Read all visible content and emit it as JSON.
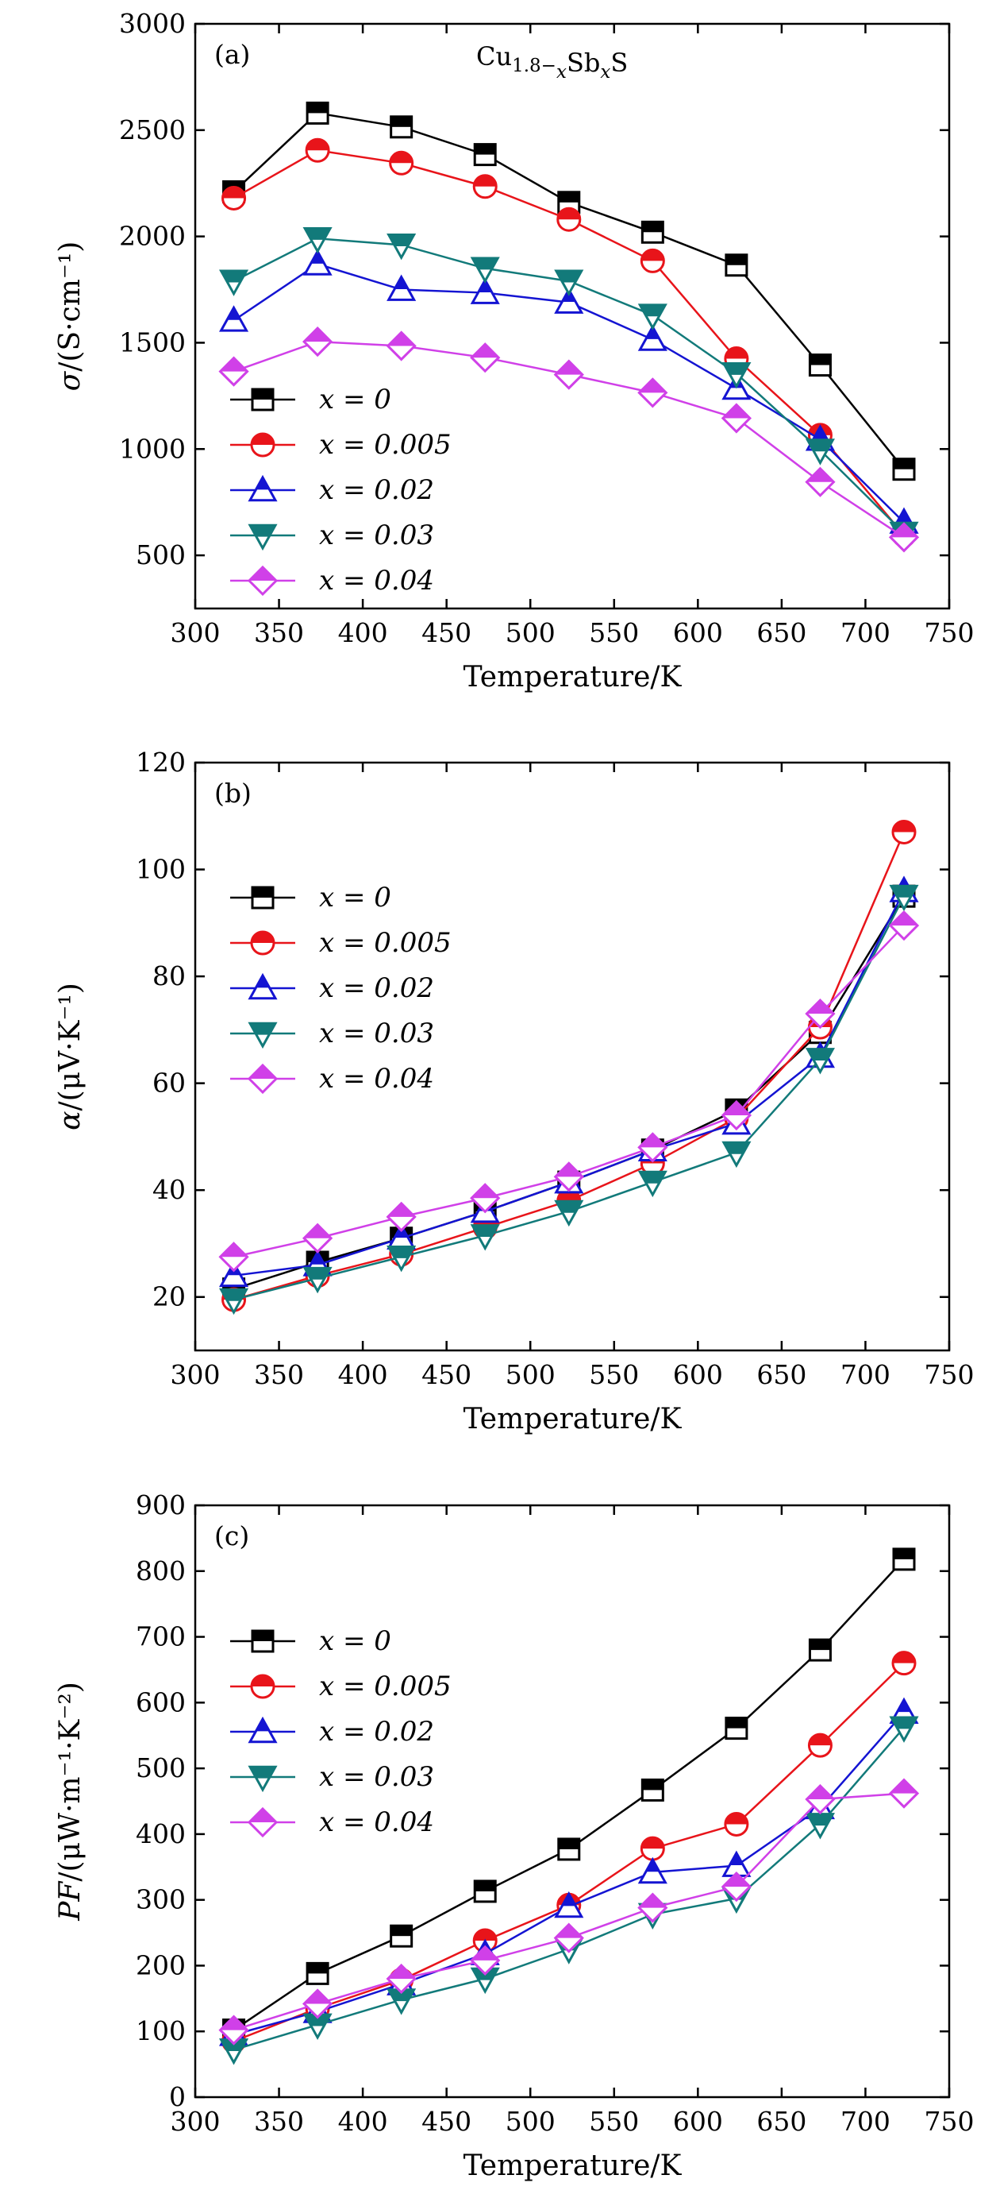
{
  "chart_data": [
    {
      "type": "line",
      "panel_label": "(a)",
      "annotation": "Cu1.8−xSbxS",
      "xlabel": "Temperature/K",
      "ylabel": "σ/(S·cm⁻¹)",
      "xlim": [
        300,
        750
      ],
      "ylim": [
        250,
        3000
      ],
      "xticks": [
        300,
        350,
        400,
        450,
        500,
        550,
        600,
        650,
        700,
        750
      ],
      "yticks": [
        500,
        1000,
        1500,
        2000,
        2500,
        3000
      ],
      "x": [
        323,
        373,
        423,
        473,
        523,
        573,
        623,
        673,
        723
      ],
      "legend_position": "lower-left",
      "series": [
        {
          "name": "x = 0",
          "marker": "square",
          "color": "#000000",
          "values": [
            2210,
            2580,
            2515,
            2385,
            2160,
            2020,
            1865,
            1395,
            905
          ]
        },
        {
          "name": "x = 0.005",
          "marker": "circle",
          "color": "#e8141a",
          "values": [
            2180,
            2405,
            2345,
            2235,
            2080,
            1885,
            1425,
            1065,
            595
          ]
        },
        {
          "name": "x = 0.02",
          "marker": "triangle-up",
          "color": "#1414d2",
          "values": [
            1605,
            1870,
            1750,
            1735,
            1690,
            1515,
            1285,
            1045,
            655
          ]
        },
        {
          "name": "x = 0.03",
          "marker": "triangle-down",
          "color": "#127a7a",
          "values": [
            1790,
            1990,
            1960,
            1850,
            1790,
            1630,
            1355,
            995,
            605
          ]
        },
        {
          "name": "x = 0.04",
          "marker": "diamond",
          "color": "#d040e8",
          "values": [
            1365,
            1505,
            1485,
            1430,
            1350,
            1265,
            1145,
            845,
            585
          ]
        }
      ]
    },
    {
      "type": "line",
      "panel_label": "(b)",
      "xlabel": "Temperature/K",
      "ylabel": "α/(μV·K⁻¹)",
      "xlim": [
        300,
        750
      ],
      "ylim": [
        10,
        120
      ],
      "xticks": [
        300,
        350,
        400,
        450,
        500,
        550,
        600,
        650,
        700,
        750
      ],
      "yticks": [
        20,
        40,
        60,
        80,
        100,
        120
      ],
      "x": [
        323,
        373,
        423,
        473,
        523,
        573,
        623,
        673,
        723
      ],
      "legend_position": "upper-left",
      "series": [
        {
          "name": "x = 0",
          "marker": "square",
          "color": "#000000",
          "values": [
            21.5,
            26.5,
            31,
            36,
            41.5,
            47.5,
            55,
            69.5,
            95
          ]
        },
        {
          "name": "x = 0.005",
          "marker": "circle",
          "color": "#e8141a",
          "values": [
            19.5,
            24,
            28,
            33,
            38,
            45,
            53.5,
            70.5,
            107
          ]
        },
        {
          "name": "x = 0.02",
          "marker": "triangle-up",
          "color": "#1414d2",
          "values": [
            24,
            26,
            31,
            36,
            41.5,
            47.5,
            52.5,
            65,
            96
          ]
        },
        {
          "name": "x = 0.03",
          "marker": "triangle-down",
          "color": "#127a7a",
          "values": [
            19.5,
            23.5,
            27.5,
            31.5,
            36,
            41.5,
            47,
            64.5,
            95
          ]
        },
        {
          "name": "x = 0.04",
          "marker": "diamond",
          "color": "#d040e8",
          "values": [
            27.5,
            31,
            35,
            38.5,
            42.5,
            48,
            54,
            73,
            89.5
          ]
        }
      ]
    },
    {
      "type": "line",
      "panel_label": "(c)",
      "xlabel": "Temperature/K",
      "ylabel": "PF/(μW·m⁻¹·K⁻²)",
      "xlim": [
        300,
        750
      ],
      "ylim": [
        0,
        900
      ],
      "xticks": [
        300,
        350,
        400,
        450,
        500,
        550,
        600,
        650,
        700,
        750
      ],
      "yticks": [
        0,
        100,
        200,
        300,
        400,
        500,
        600,
        700,
        800,
        900
      ],
      "x": [
        323,
        373,
        423,
        473,
        523,
        573,
        623,
        673,
        723
      ],
      "legend_position": "upper-left",
      "series": [
        {
          "name": "x = 0",
          "marker": "square",
          "color": "#000000",
          "values": [
            102,
            188,
            245,
            313,
            377,
            467,
            561,
            680,
            818
          ]
        },
        {
          "name": "x = 0.005",
          "marker": "circle",
          "color": "#e8141a",
          "values": [
            85,
            135,
            178,
            238,
            292,
            378,
            415,
            535,
            660
          ]
        },
        {
          "name": "x = 0.02",
          "marker": "triangle-up",
          "color": "#1414d2",
          "values": [
            95,
            130,
            172,
            218,
            290,
            342,
            352,
            440,
            585
          ]
        },
        {
          "name": "x = 0.03",
          "marker": "triangle-down",
          "color": "#127a7a",
          "values": [
            72,
            110,
            148,
            180,
            225,
            278,
            302,
            415,
            562
          ]
        },
        {
          "name": "x = 0.04",
          "marker": "diamond",
          "color": "#d040e8",
          "values": [
            102,
            142,
            180,
            208,
            242,
            288,
            320,
            453,
            462
          ]
        }
      ]
    }
  ]
}
